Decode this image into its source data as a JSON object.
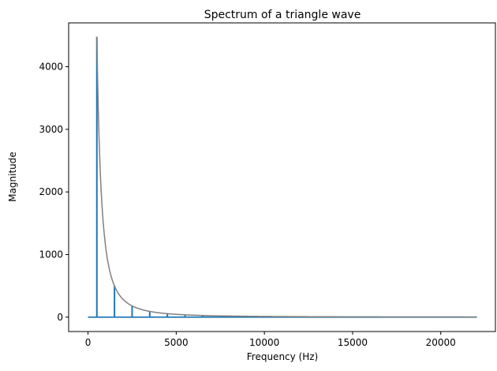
{
  "chart_data": {
    "type": "line",
    "title": "Spectrum of a triangle wave",
    "xlabel": "Frequency (Hz)",
    "ylabel": "Magnitude",
    "xlim": [
      -1100,
      23100
    ],
    "ylim": [
      -230,
      4700
    ],
    "x_ticks": [
      0,
      5000,
      10000,
      15000,
      20000
    ],
    "x_tick_labels": [
      "0",
      "5000",
      "10000",
      "15000",
      "20000"
    ],
    "y_ticks": [
      0,
      1000,
      2000,
      3000,
      4000
    ],
    "y_tick_labels": [
      "0",
      "1000",
      "2000",
      "3000",
      "4000"
    ],
    "grid": false,
    "series": [
      {
        "kind": "spectrum",
        "color": "#1f77b4",
        "baseline": 0,
        "x_max": 22050,
        "peaks": [
          {
            "x": 500,
            "y": 4480
          },
          {
            "x": 1500,
            "y": 500
          },
          {
            "x": 2500,
            "y": 180
          },
          {
            "x": 3500,
            "y": 92
          },
          {
            "x": 4500,
            "y": 56
          },
          {
            "x": 5500,
            "y": 37
          },
          {
            "x": 6500,
            "y": 27
          },
          {
            "x": 7500,
            "y": 20
          },
          {
            "x": 8500,
            "y": 15
          },
          {
            "x": 9500,
            "y": 12
          },
          {
            "x": 10500,
            "y": 10
          },
          {
            "x": 11500,
            "y": 8
          },
          {
            "x": 12500,
            "y": 7
          },
          {
            "x": 13500,
            "y": 6
          },
          {
            "x": 14500,
            "y": 5
          },
          {
            "x": 15500,
            "y": 4
          },
          {
            "x": 16500,
            "y": 4
          },
          {
            "x": 17500,
            "y": 3
          },
          {
            "x": 18500,
            "y": 3
          },
          {
            "x": 19500,
            "y": 3
          },
          {
            "x": 20500,
            "y": 2
          },
          {
            "x": 21500,
            "y": 2
          }
        ]
      },
      {
        "kind": "envelope",
        "color": "#808080",
        "x_min": 500,
        "x_max": 22050,
        "model": "y = 4480 * (500 / x)^2"
      }
    ]
  }
}
